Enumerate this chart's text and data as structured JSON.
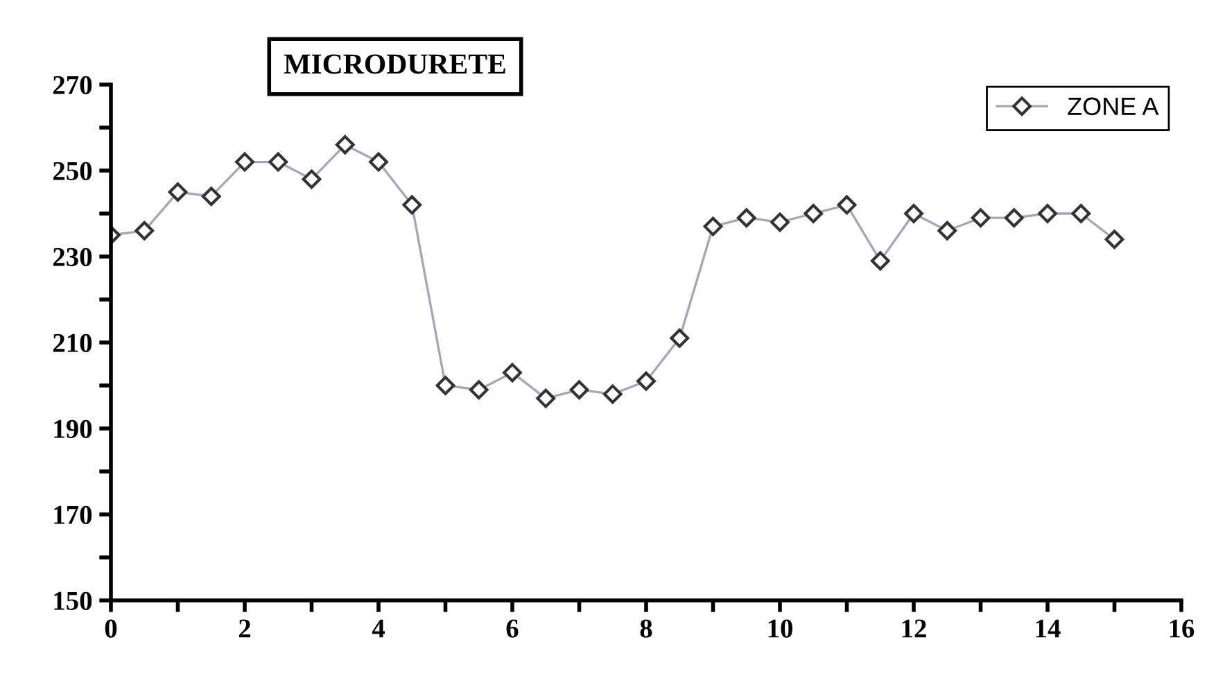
{
  "chart_data": {
    "type": "line",
    "title": "MICRODURETE",
    "x": [
      0,
      0.5,
      1,
      1.5,
      2,
      2.5,
      3,
      3.5,
      4,
      4.5,
      5,
      5.5,
      6,
      6.5,
      7,
      7.5,
      8,
      8.5,
      9,
      9.5,
      10,
      10.5,
      11,
      11.5,
      12,
      12.5,
      13,
      13.5,
      14,
      14.5,
      15
    ],
    "series": [
      {
        "name": "ZONE A",
        "color": "#a8a4c0",
        "values": [
          235,
          236,
          245,
          244,
          252,
          252,
          248,
          256,
          252,
          242,
          200,
          199,
          203,
          197,
          199,
          198,
          201,
          211,
          237,
          239,
          238,
          240,
          242,
          229,
          240,
          236,
          239,
          239,
          240,
          240,
          234
        ]
      }
    ],
    "marker": "diamond",
    "line_style": "solid",
    "legend": "top right",
    "grid": false,
    "xlim": [
      0,
      16
    ],
    "xticks": [
      0,
      {
        "value": 1,
        "label": null
      },
      2,
      {
        "value": 3,
        "label": null
      },
      4,
      {
        "value": 5,
        "label": null
      },
      6,
      {
        "value": 7,
        "label": null
      },
      8,
      {
        "value": 9,
        "label": null
      },
      10,
      {
        "value": 11,
        "label": null
      },
      12,
      {
        "value": 13,
        "label": null
      },
      14,
      {
        "value": 15,
        "label": null
      },
      16
    ],
    "ylim": [
      150,
      270
    ],
    "yticks": [
      150,
      {
        "value": 160,
        "label": null
      },
      170,
      {
        "value": 180,
        "label": null
      },
      190,
      {
        "value": 200,
        "label": null
      },
      210,
      {
        "value": 220,
        "label": null
      },
      230,
      {
        "value": 240,
        "label": null
      },
      250,
      {
        "value": 260,
        "label": null
      },
      270
    ]
  }
}
